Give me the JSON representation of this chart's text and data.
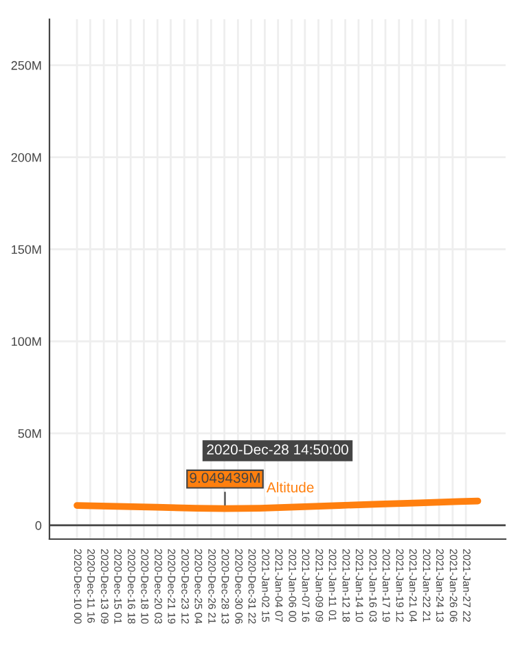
{
  "chart_data": {
    "type": "line",
    "x": [
      "2020-12-10T00:00",
      "2020-12-15T00:00",
      "2020-12-20T00:00",
      "2020-12-25T00:00",
      "2020-12-28T14:50",
      "2021-01-02T00:00",
      "2021-01-07T00:00",
      "2021-01-12T00:00",
      "2021-01-17T00:00",
      "2021-01-22T00:00",
      "2021-01-27T00:00",
      "2021-01-29T10:00"
    ],
    "series": [
      {
        "name": "Altitude",
        "color": "#ff7f0e",
        "values": [
          10800000,
          10300000,
          9800000,
          9300000,
          9049439,
          9300000,
          10000000,
          10800000,
          11500000,
          12200000,
          12900000,
          13200000
        ]
      }
    ],
    "ylim": [
      -7500000,
      275000000
    ],
    "yticks": [
      {
        "value": 0,
        "label": "0"
      },
      {
        "value": 50000000,
        "label": "50M"
      },
      {
        "value": 100000000,
        "label": "100M"
      },
      {
        "value": 150000000,
        "label": "150M"
      },
      {
        "value": 200000000,
        "label": "200M"
      },
      {
        "value": 250000000,
        "label": "250M"
      }
    ],
    "xlim": [
      "2020-12-06T13:00",
      "2021-02-01T22:00"
    ],
    "xticks": [
      {
        "value": "2020-12-10T00:00",
        "label": "2020-Dec-10 00"
      },
      {
        "value": "2020-12-11T16:00",
        "label": "2020-Dec-11 16"
      },
      {
        "value": "2020-12-13T09:00",
        "label": "2020-Dec-13 09"
      },
      {
        "value": "2020-12-15T01:00",
        "label": "2020-Dec-15 01"
      },
      {
        "value": "2020-12-16T18:00",
        "label": "2020-Dec-16 18"
      },
      {
        "value": "2020-12-18T10:00",
        "label": "2020-Dec-18 10"
      },
      {
        "value": "2020-12-20T03:00",
        "label": "2020-Dec-20 03"
      },
      {
        "value": "2020-12-21T19:00",
        "label": "2020-Dec-21 19"
      },
      {
        "value": "2020-12-23T12:00",
        "label": "2020-Dec-23 12"
      },
      {
        "value": "2020-12-25T04:00",
        "label": "2020-Dec-25 04"
      },
      {
        "value": "2020-12-26T21:00",
        "label": "2020-Dec-26 21"
      },
      {
        "value": "2020-12-28T13:00",
        "label": "2020-Dec-28 13"
      },
      {
        "value": "2020-12-30T06:00",
        "label": "2020-Dec-30 06"
      },
      {
        "value": "2020-12-31T22:00",
        "label": "2020-Dec-31 22"
      },
      {
        "value": "2021-01-02T15:00",
        "label": "2021-Jan-02 15"
      },
      {
        "value": "2021-01-04T07:00",
        "label": "2021-Jan-04 07"
      },
      {
        "value": "2021-01-06T00:00",
        "label": "2021-Jan-06 00"
      },
      {
        "value": "2021-01-07T16:00",
        "label": "2021-Jan-07 16"
      },
      {
        "value": "2021-01-09T09:00",
        "label": "2021-Jan-09 09"
      },
      {
        "value": "2021-01-11T01:00",
        "label": "2021-Jan-11 01"
      },
      {
        "value": "2021-01-12T18:00",
        "label": "2021-Jan-12 18"
      },
      {
        "value": "2021-01-14T10:00",
        "label": "2021-Jan-14 10"
      },
      {
        "value": "2021-01-16T03:00",
        "label": "2021-Jan-16 03"
      },
      {
        "value": "2021-01-17T19:00",
        "label": "2021-Jan-17 19"
      },
      {
        "value": "2021-01-19T12:00",
        "label": "2021-Jan-19 12"
      },
      {
        "value": "2021-01-21T04:00",
        "label": "2021-Jan-21 04"
      },
      {
        "value": "2021-01-22T21:00",
        "label": "2021-Jan-22 21"
      },
      {
        "value": "2021-01-24T13:00",
        "label": "2021-Jan-24 13"
      },
      {
        "value": "2021-01-26T06:00",
        "label": "2021-Jan-26 06"
      },
      {
        "value": "2021-01-27T22:00",
        "label": "2021-Jan-27 22"
      }
    ],
    "ref_lines": [
      {
        "axis": "y",
        "value": 0,
        "color": "#444444"
      }
    ],
    "annotations": [
      {
        "text": "9.049439M",
        "x": "2020-12-28T14:50",
        "y": 9049439
      },
      "2020-Dec-28 14:50:00"
    ],
    "grid": true,
    "marker": "none",
    "line_style": "solid",
    "legend": false
  }
}
